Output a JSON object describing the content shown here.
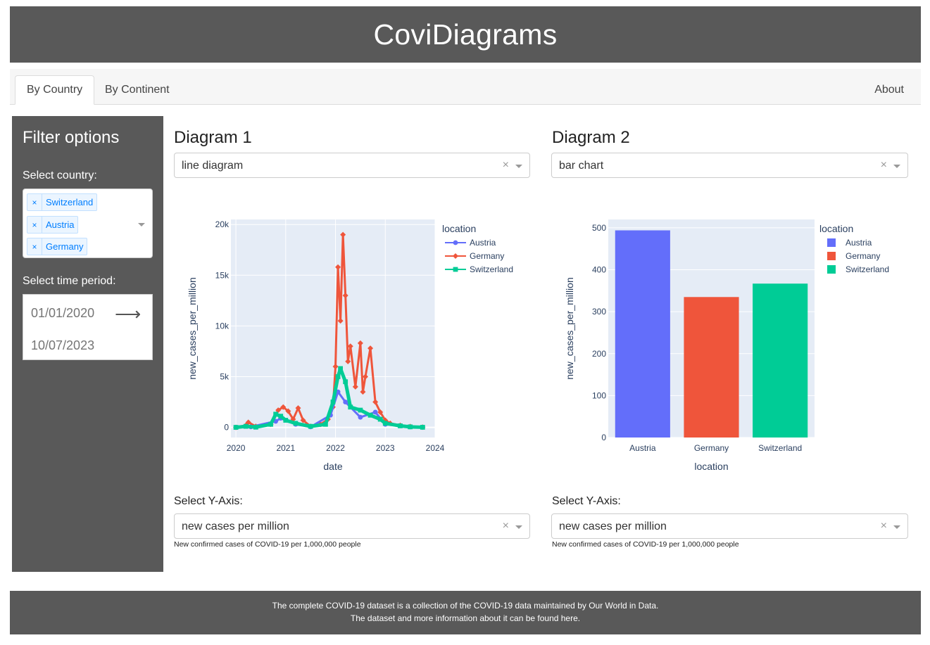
{
  "app": {
    "title": "CoviDiagrams"
  },
  "tabs": [
    {
      "label": "By Country",
      "active": true
    },
    {
      "label": "By Continent",
      "active": false
    },
    {
      "label": "About",
      "active": false
    }
  ],
  "sidebar": {
    "title": "Filter options",
    "country_label": "Select country:",
    "countries": [
      "Switzerland",
      "Austria",
      "Germany"
    ],
    "time_label": "Select time period:",
    "start_date": "01/01/2020",
    "end_date": "10/07/2023"
  },
  "panels": [
    {
      "title": "Diagram 1",
      "diagram_type": "line diagram",
      "y_axis_label": "Select Y-Axis:",
      "y_axis_value": "new cases per million",
      "y_axis_help": "New confirmed cases of COVID-19 per 1,000,000 people"
    },
    {
      "title": "Diagram 2",
      "diagram_type": "bar chart",
      "y_axis_label": "Select Y-Axis:",
      "y_axis_value": "new cases per million",
      "y_axis_help": "New confirmed cases of COVID-19 per 1,000,000 people"
    }
  ],
  "chart_data": [
    {
      "type": "line",
      "xlabel": "date",
      "ylabel": "new_cases_per_million",
      "legend_title": "location",
      "legend_position": "top-right",
      "xlim": [
        2019.9,
        2024.0
      ],
      "ylim": [
        -1000,
        20500
      ],
      "x_ticks": [
        "2020",
        "2021",
        "2022",
        "2023",
        "2024"
      ],
      "y_ticks": [
        "0",
        "5k",
        "10k",
        "15k",
        "20k"
      ],
      "grid": true,
      "series": [
        {
          "name": "Austria",
          "color": "#636efa",
          "marker": "circle",
          "x": [
            2020.0,
            2020.3,
            2020.8,
            2020.9,
            2021.2,
            2021.5,
            2021.9,
            2022.05,
            2022.2,
            2022.5,
            2022.8,
            2023.0,
            2023.5,
            2023.75
          ],
          "y": [
            0,
            50,
            600,
            900,
            300,
            50,
            1200,
            3500,
            2500,
            1000,
            1500,
            300,
            50,
            20
          ]
        },
        {
          "name": "Germany",
          "color": "#ef553b",
          "marker": "diamond",
          "x": [
            2020.0,
            2020.2,
            2020.25,
            2020.4,
            2020.7,
            2020.85,
            2020.95,
            2021.05,
            2021.15,
            2021.25,
            2021.35,
            2021.5,
            2021.7,
            2021.85,
            2021.95,
            2022.0,
            2022.05,
            2022.1,
            2022.15,
            2022.2,
            2022.25,
            2022.3,
            2022.4,
            2022.5,
            2022.55,
            2022.6,
            2022.7,
            2022.8,
            2022.9,
            2023.0,
            2023.1,
            2023.3,
            2023.5,
            2023.75
          ],
          "y": [
            0,
            200,
            500,
            100,
            300,
            1700,
            2000,
            1600,
            800,
            1900,
            700,
            100,
            300,
            800,
            2000,
            6000,
            15800,
            10500,
            19000,
            13000,
            6500,
            8000,
            4000,
            8300,
            3500,
            5000,
            7800,
            2500,
            1500,
            700,
            400,
            200,
            80,
            20
          ]
        },
        {
          "name": "Switzerland",
          "color": "#00cc96",
          "marker": "square",
          "x": [
            2020.0,
            2020.2,
            2020.4,
            2020.7,
            2020.8,
            2020.9,
            2021.0,
            2021.2,
            2021.5,
            2021.8,
            2021.95,
            2022.05,
            2022.1,
            2022.2,
            2022.3,
            2022.5,
            2022.7,
            2022.9,
            2023.0,
            2023.3,
            2023.5,
            2023.75
          ],
          "y": [
            0,
            100,
            20,
            300,
            1300,
            1100,
            700,
            400,
            100,
            300,
            2500,
            5000,
            5800,
            4500,
            2000,
            1700,
            1200,
            800,
            400,
            150,
            50,
            10
          ]
        }
      ]
    },
    {
      "type": "bar",
      "xlabel": "location",
      "ylabel": "new_cases_per_million",
      "legend_title": "location",
      "legend_position": "top-right",
      "categories": [
        "Austria",
        "Germany",
        "Switzerland"
      ],
      "values": [
        494,
        335,
        367
      ],
      "colors": [
        "#636efa",
        "#ef553b",
        "#00cc96"
      ],
      "ylim": [
        0,
        520
      ],
      "y_ticks": [
        "0",
        "100",
        "200",
        "300",
        "400",
        "500"
      ],
      "grid": true
    }
  ],
  "footer": {
    "line1": "The complete COVID-19 dataset is a collection of the COVID-19 data maintained by Our World in Data.",
    "line2": "The dataset and more information about it can be found here."
  }
}
